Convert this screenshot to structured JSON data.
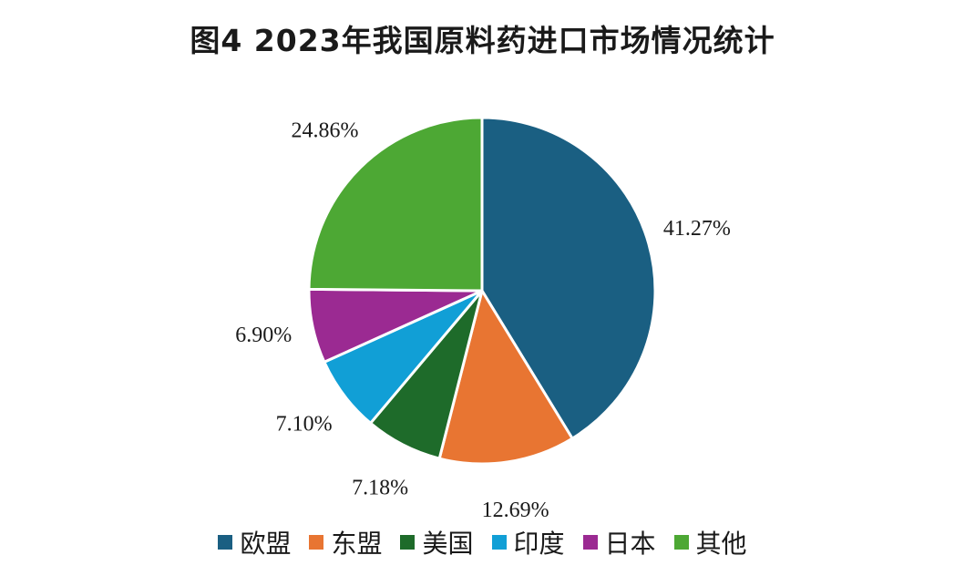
{
  "chart_data": {
    "type": "pie",
    "title": "图4 2023年我国原料药进口市场情况统计",
    "categories": [
      "欧盟",
      "东盟",
      "美国",
      "印度",
      "日本",
      "其他"
    ],
    "values": [
      41.27,
      12.69,
      7.18,
      7.1,
      6.9,
      24.86
    ],
    "labels": [
      "41.27%",
      "12.69%",
      "7.18%",
      "7.10%",
      "6.90%",
      "24.86%"
    ],
    "colors": [
      "#1a5f82",
      "#e87532",
      "#1e6b2a",
      "#119fd6",
      "#9b2a92",
      "#4da834"
    ],
    "start": "12 o'clock",
    "direction": "clockwise",
    "legend_position": "bottom"
  }
}
